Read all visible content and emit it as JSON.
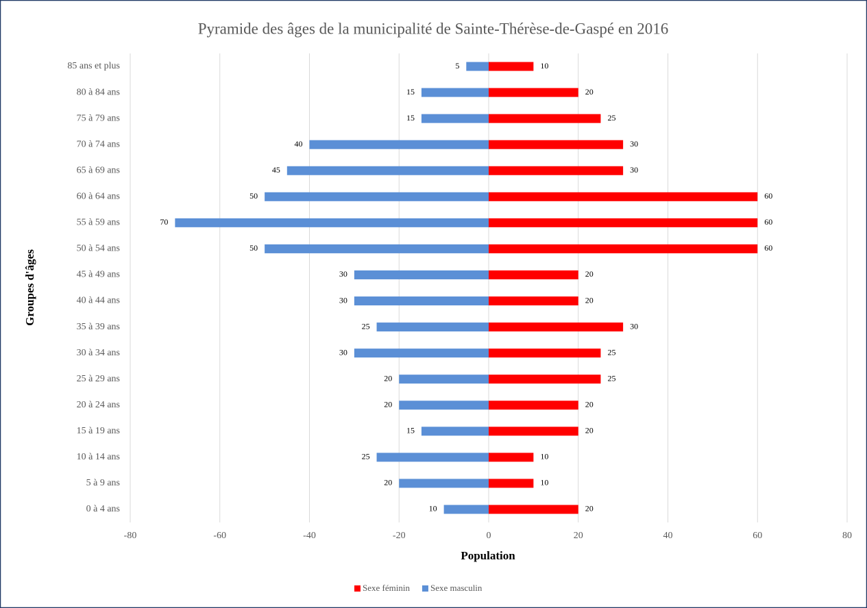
{
  "chart_data": {
    "type": "bar",
    "orientation": "horizontal",
    "title": "Pyramide des âges de la municipalité de Sainte-Thérèse-de-Gaspé en 2016",
    "x_label": "Population",
    "y_label": "Groupes d'âges",
    "categories": [
      "85 ans et plus",
      "80 à 84 ans",
      "75 à 79 ans",
      "70 à 74 ans",
      "65 à 69 ans",
      "60 à 64 ans",
      "55 à 59 ans",
      "50 à 54 ans",
      "45 à 49 ans",
      "40 à 44 ans",
      "35 à 39 ans",
      "30 à 34 ans",
      "25 à 29 ans",
      "20 à 24 ans",
      "15 à 19 ans",
      "10 à 14 ans",
      "5 à 9 ans",
      "0 à 4 ans"
    ],
    "series": [
      {
        "name": "Sexe féminin",
        "color": "#ff0000",
        "values": [
          10,
          20,
          25,
          30,
          30,
          60,
          60,
          60,
          20,
          20,
          30,
          25,
          25,
          20,
          20,
          10,
          10,
          20
        ]
      },
      {
        "name": "Sexe masculin",
        "color": "#5b8fd6",
        "values": [
          -5,
          -15,
          -15,
          -40,
          -45,
          -50,
          -70,
          -50,
          -30,
          -30,
          -25,
          -30,
          -20,
          -20,
          -15,
          -25,
          -20,
          -10
        ],
        "value_labels": [
          "5",
          "15",
          "15",
          "40",
          "45",
          "50",
          "70",
          "50",
          "30",
          "30",
          "25",
          "30",
          "20",
          "20",
          "15",
          "25",
          "20",
          "10"
        ]
      }
    ],
    "xlim": [
      -80,
      80
    ],
    "xticks": [
      -80,
      -60,
      -40,
      -20,
      0,
      20,
      40,
      60,
      80
    ],
    "grid": true,
    "legend": "bottom"
  }
}
